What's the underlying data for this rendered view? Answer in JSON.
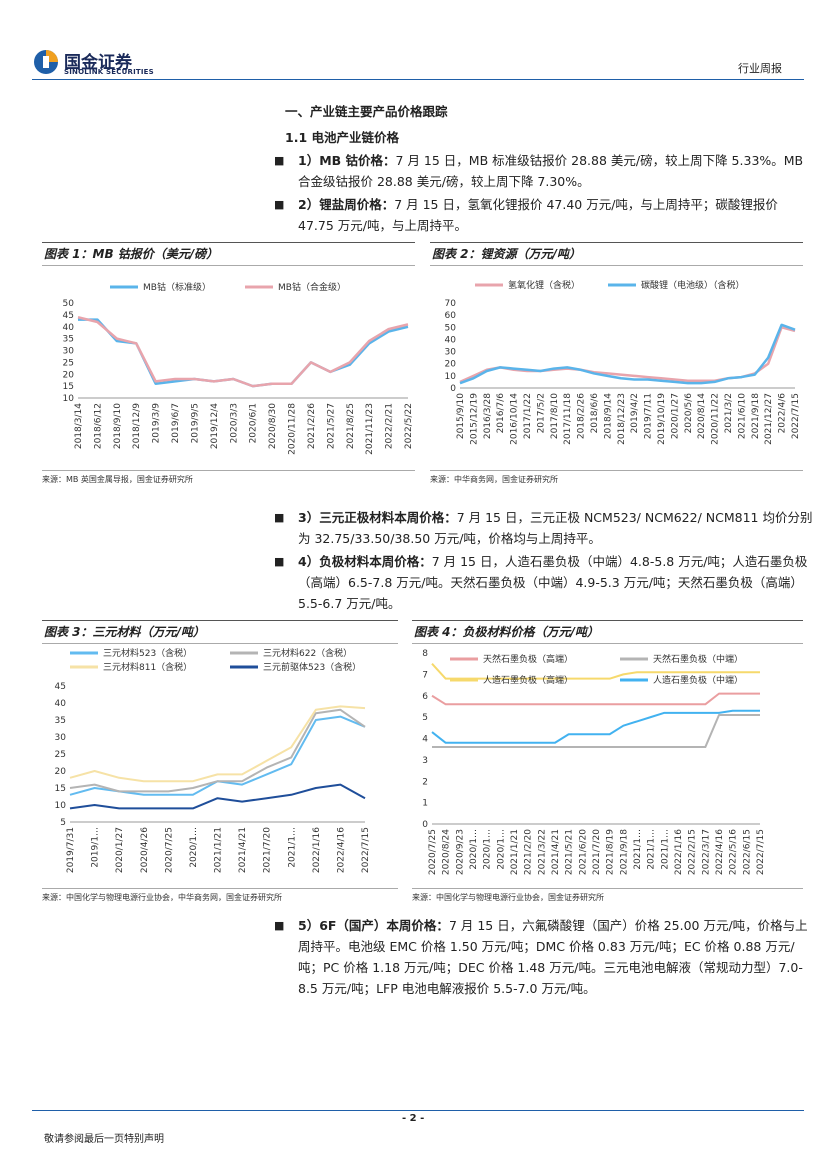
{
  "header": {
    "brand": "国金证券",
    "brand_en": "SINOLINK SECURITIES",
    "report_type": "行业周报"
  },
  "section_title": "一、产业链主要产品价格跟踪",
  "subsection_title": "1.1 电池产业链价格",
  "bullets": [
    {
      "lead": "1）MB 钴价格：",
      "text": "7 月 15 日，MB 标准级钴报价 28.88 美元/磅，较上周下降 5.33%。MB 合金级钴报价 28.88 美元/磅，较上周下降 7.30%。"
    },
    {
      "lead": "2）锂盐周价格：",
      "text": "7 月 15 日，氢氧化锂报价 47.40 万元/吨，与上周持平；碳酸锂报价 47.75 万元/吨，与上周持平。"
    },
    {
      "lead": "3）三元正极材料本周价格：",
      "text": "7 月 15 日，三元正极 NCM523/ NCM622/ NCM811 均价分别为 32.75/33.50/38.50 万元/吨，价格均与上周持平。"
    },
    {
      "lead": "4）负极材料本周价格：",
      "text": "7 月 15 日，人造石墨负极（中端）4.8-5.8 万元/吨；人造石墨负极（高端）6.5-7.8 万元/吨。天然石墨负极（中端）4.9-5.3 万元/吨；天然石墨负极（高端）5.5-6.7 万元/吨。"
    },
    {
      "lead": "5）6F（国产）本周价格：",
      "text": "7 月 15 日，六氟磷酸锂（国产）价格 25.00 万元/吨，价格与上周持平。电池级 EMC 价格 1.50 万元/吨；DMC 价格 0.83 万元/吨；EC 价格 0.88 万元/吨；PC 价格 1.18 万元/吨；DEC 价格 1.48 万元/吨。三元电池电解液（常规动力型）7.0-8.5 万元/吨；LFP 电池电解液报价 5.5-7.0 万元/吨。"
    }
  ],
  "chart_data": [
    {
      "type": "line",
      "title": "图表 1：MB 钴报价（美元/磅）",
      "source": "来源：MB 英国金属导报，国金证券研究所",
      "categories": [
        "2018/3/14",
        "2018/6/12",
        "2018/9/10",
        "2018/12/9",
        "2019/3/9",
        "2019/6/7",
        "2019/9/5",
        "2019/12/4",
        "2020/3/3",
        "2020/6/1",
        "2020/8/30",
        "2020/11/28",
        "2021/2/26",
        "2021/5/27",
        "2021/8/25",
        "2021/11/23",
        "2022/2/21",
        "2022/5/22"
      ],
      "series": [
        {
          "name": "MB钴（标准级）",
          "color": "#5ab4ea",
          "values": [
            43,
            43,
            34,
            33,
            16,
            17,
            18,
            17,
            18,
            15,
            16,
            16,
            25,
            21,
            24,
            33,
            38,
            40
          ]
        },
        {
          "name": "MB钴（合金级）",
          "color": "#e8a4ac",
          "values": [
            44,
            42,
            35,
            33,
            17,
            18,
            18,
            17,
            18,
            15,
            16,
            16,
            25,
            21,
            25,
            34,
            39,
            41
          ]
        }
      ],
      "ylim": [
        10,
        50
      ],
      "yticks": [
        10,
        15,
        20,
        25,
        30,
        35,
        40,
        45,
        50
      ],
      "grid": false
    },
    {
      "type": "line",
      "title": "图表 2：锂资源（万元/吨）",
      "source": "来源：中华商务网，国金证券研究所",
      "categories": [
        "2015/9/10",
        "2015/12/19",
        "2016/3/28",
        "2016/7/6",
        "2016/10/14",
        "2017/1/22",
        "2017/5/2",
        "2017/8/10",
        "2017/11/18",
        "2018/2/26",
        "2018/6/6",
        "2018/9/14",
        "2018/12/23",
        "2019/4/2",
        "2019/7/11",
        "2019/10/19",
        "2020/1/27",
        "2020/5/6",
        "2020/8/14",
        "2020/11/22",
        "2021/3/2",
        "2021/6/10",
        "2021/9/18",
        "2021/12/27",
        "2022/4/6",
        "2022/7/15"
      ],
      "series": [
        {
          "name": "氢氧化锂（含税）",
          "color": "#e8a4ac",
          "values": [
            5,
            10,
            15,
            17,
            15,
            14,
            14,
            15,
            16,
            15,
            13,
            12,
            11,
            10,
            9,
            8,
            7,
            6,
            6,
            6,
            8,
            9,
            12,
            20,
            50,
            47
          ]
        },
        {
          "name": "碳酸锂（电池级）（含税）",
          "color": "#5ab4ea",
          "values": [
            4,
            8,
            14,
            17,
            16,
            15,
            14,
            16,
            17,
            15,
            12,
            10,
            8,
            7,
            7,
            6,
            5,
            4,
            4,
            5,
            8,
            9,
            11,
            25,
            52,
            48
          ]
        }
      ],
      "ylim": [
        0,
        70
      ],
      "yticks": [
        0,
        10,
        20,
        30,
        40,
        50,
        60,
        70
      ],
      "grid": false
    },
    {
      "type": "line",
      "title": "图表 3：三元材料（万元/吨）",
      "source": "来源：中国化学与物理电源行业协会，中华商务网，国金证券研究所",
      "categories": [
        "2019/7/31",
        "2019/1…",
        "2020/1/27",
        "2020/4/26",
        "2020/7/25",
        "2020/1…",
        "2021/1/21",
        "2021/4/21",
        "2021/7/20",
        "2021/1…",
        "2022/1/16",
        "2022/4/16",
        "2022/7/15"
      ],
      "series": [
        {
          "name": "三元材料523（含税）",
          "color": "#62bbf0",
          "values": [
            13,
            15,
            14,
            13,
            13,
            13,
            17,
            16,
            19,
            22,
            35,
            36,
            33
          ]
        },
        {
          "name": "三元材料622（含税）",
          "color": "#b4b4b4",
          "values": [
            15,
            16,
            14,
            14,
            14,
            15,
            17,
            17,
            21,
            24,
            37,
            38,
            33
          ]
        },
        {
          "name": "三元材料811（含税）",
          "color": "#f6e2a6",
          "values": [
            18,
            20,
            18,
            17,
            17,
            17,
            19,
            19,
            23,
            27,
            38,
            39,
            38.5
          ]
        },
        {
          "name": "三元前驱体523（含税）",
          "color": "#1f4e9a",
          "values": [
            9,
            10,
            9,
            9,
            9,
            9,
            12,
            11,
            12,
            13,
            15,
            16,
            12
          ]
        }
      ],
      "ylim": [
        5,
        45
      ],
      "yticks": [
        5,
        10,
        15,
        20,
        25,
        30,
        35,
        40,
        45
      ],
      "grid": false
    },
    {
      "type": "line",
      "title": "图表 4：负极材料价格（万元/吨）",
      "source": "来源：中国化学与物理电源行业协会，国金证券研究所",
      "categories": [
        "2020/7/25",
        "2020/8/24",
        "2020/9/23",
        "2020/1…",
        "2020/1…",
        "2020/1…",
        "2021/1/21",
        "2021/2/20",
        "2021/3/22",
        "2021/4/21",
        "2021/5/21",
        "2021/6/20",
        "2021/7/20",
        "2021/8/19",
        "2021/9/18",
        "2021/1…",
        "2021/1…",
        "2021/1…",
        "2022/1/16",
        "2022/2/15",
        "2022/3/17",
        "2022/4/16",
        "2022/5/16",
        "2022/6/15",
        "2022/7/15"
      ],
      "series": [
        {
          "name": "天然石墨负极（高端）",
          "color": "#ea9ea0",
          "values": [
            6,
            5.6,
            5.6,
            5.6,
            5.6,
            5.6,
            5.6,
            5.6,
            5.6,
            5.6,
            5.6,
            5.6,
            5.6,
            5.6,
            5.6,
            5.6,
            5.6,
            5.6,
            5.6,
            5.6,
            5.6,
            6.1,
            6.1,
            6.1,
            6.1
          ]
        },
        {
          "name": "天然石墨负极（中端）",
          "color": "#b4b4b4",
          "values": [
            3.6,
            3.6,
            3.6,
            3.6,
            3.6,
            3.6,
            3.6,
            3.6,
            3.6,
            3.6,
            3.6,
            3.6,
            3.6,
            3.6,
            3.6,
            3.6,
            3.6,
            3.6,
            3.6,
            3.6,
            3.6,
            5.1,
            5.1,
            5.1,
            5.1
          ]
        },
        {
          "name": "人造石墨负极（高端）",
          "color": "#f6d96c",
          "values": [
            7.5,
            6.8,
            6.8,
            6.8,
            6.8,
            6.8,
            6.8,
            6.8,
            6.8,
            6.8,
            6.8,
            6.8,
            6.8,
            6.8,
            7,
            7.1,
            7.1,
            7.1,
            7.1,
            7.1,
            7.1,
            7.1,
            7.1,
            7.1,
            7.1
          ]
        },
        {
          "name": "人造石墨负极（中端）",
          "color": "#42b2f0",
          "values": [
            4.3,
            3.8,
            3.8,
            3.8,
            3.8,
            3.8,
            3.8,
            3.8,
            3.8,
            3.8,
            4.2,
            4.2,
            4.2,
            4.2,
            4.6,
            4.8,
            5,
            5.2,
            5.2,
            5.2,
            5.2,
            5.2,
            5.3,
            5.3,
            5.3
          ]
        }
      ],
      "ylim": [
        0,
        8
      ],
      "yticks": [
        0,
        1,
        2,
        3,
        4,
        5,
        6,
        7,
        8
      ],
      "grid": false
    }
  ],
  "footer": {
    "page": "- 2 -",
    "disclaimer": "敬请参阅最后一页特别声明"
  }
}
